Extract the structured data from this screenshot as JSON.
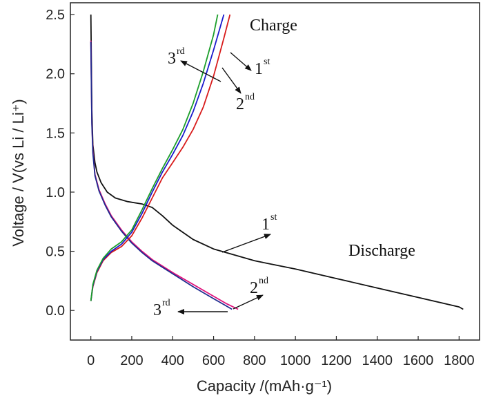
{
  "chart_data": {
    "type": "line",
    "xlabel": "Capacity /(mAh·g⁻¹)",
    "ylabel": "Voltage / V(vs Li / Li⁺)",
    "xlim": [
      -100,
      1900
    ],
    "ylim": [
      -0.25,
      2.6
    ],
    "xticks": [
      0,
      200,
      400,
      600,
      800,
      1000,
      1200,
      1400,
      1600,
      1800
    ],
    "xtick_labels": [
      "0",
      "200",
      "400",
      "600",
      "800",
      "1000",
      "1200",
      "1400",
      "1600",
      "1800"
    ],
    "yticks": [
      0.0,
      0.5,
      1.0,
      1.5,
      2.0,
      2.5
    ],
    "ytick_labels": [
      "0.0",
      "0.5",
      "1.0",
      "1.5",
      "2.0",
      "2.5"
    ],
    "grid": false,
    "series": [
      {
        "group": "discharge",
        "color": "#111111",
        "x": [
          0,
          5,
          10,
          20,
          30,
          50,
          80,
          120,
          180,
          250,
          300,
          350,
          400,
          500,
          600,
          700,
          800,
          1000,
          1200,
          1400,
          1600,
          1800,
          1820
        ],
        "y": [
          2.5,
          1.7,
          1.4,
          1.25,
          1.17,
          1.08,
          1.0,
          0.95,
          0.92,
          0.9,
          0.87,
          0.8,
          0.72,
          0.6,
          0.52,
          0.47,
          0.42,
          0.35,
          0.27,
          0.19,
          0.11,
          0.03,
          0.01
        ]
      },
      {
        "group": "discharge",
        "color": "#e0107a",
        "x": [
          0,
          5,
          10,
          20,
          40,
          70,
          100,
          150,
          200,
          250,
          300,
          400,
          500,
          600,
          660,
          720
        ],
        "y": [
          2.28,
          1.6,
          1.35,
          1.15,
          1.02,
          0.9,
          0.8,
          0.68,
          0.58,
          0.5,
          0.43,
          0.32,
          0.22,
          0.12,
          0.06,
          0.01
        ]
      },
      {
        "group": "discharge",
        "color": "#1f2b8f",
        "x": [
          0,
          5,
          10,
          20,
          40,
          70,
          100,
          150,
          200,
          250,
          300,
          400,
          500,
          600,
          650,
          690
        ],
        "y": [
          2.27,
          1.58,
          1.33,
          1.14,
          1.01,
          0.89,
          0.79,
          0.67,
          0.57,
          0.49,
          0.42,
          0.31,
          0.2,
          0.1,
          0.05,
          0.01
        ]
      },
      {
        "group": "charge",
        "color": "#d81b1b",
        "x": [
          0,
          10,
          30,
          60,
          100,
          150,
          200,
          250,
          300,
          350,
          400,
          450,
          500,
          550,
          600,
          650,
          680
        ],
        "y": [
          0.08,
          0.2,
          0.32,
          0.42,
          0.49,
          0.54,
          0.63,
          0.78,
          0.95,
          1.12,
          1.25,
          1.38,
          1.53,
          1.72,
          1.98,
          2.3,
          2.5
        ]
      },
      {
        "group": "charge",
        "color": "#1a1acc",
        "x": [
          0,
          10,
          30,
          60,
          100,
          150,
          200,
          250,
          300,
          350,
          400,
          450,
          500,
          550,
          600,
          650
        ],
        "y": [
          0.08,
          0.21,
          0.33,
          0.43,
          0.5,
          0.56,
          0.66,
          0.82,
          1.0,
          1.17,
          1.32,
          1.48,
          1.68,
          1.92,
          2.2,
          2.5
        ]
      },
      {
        "group": "charge",
        "color": "#1b9e2a",
        "x": [
          0,
          10,
          30,
          60,
          100,
          150,
          200,
          250,
          300,
          350,
          400,
          450,
          500,
          550,
          600,
          620
        ],
        "y": [
          0.08,
          0.22,
          0.34,
          0.44,
          0.52,
          0.58,
          0.68,
          0.85,
          1.03,
          1.2,
          1.36,
          1.53,
          1.75,
          2.02,
          2.33,
          2.5
        ]
      }
    ],
    "annotations": {
      "charge": "Charge",
      "discharge": "Discharge",
      "cycle_labels": {
        "c3_charge": {
          "main": "3",
          "sup": "rd"
        },
        "c1_charge": {
          "main": "1",
          "sup": "st"
        },
        "c2_charge": {
          "main": "2",
          "sup": "nd"
        },
        "c1_discharge": {
          "main": "1",
          "sup": "st"
        },
        "c2_discharge": {
          "main": "2",
          "sup": "nd"
        },
        "c3_discharge": {
          "main": "3",
          "sup": "rd"
        }
      }
    }
  }
}
